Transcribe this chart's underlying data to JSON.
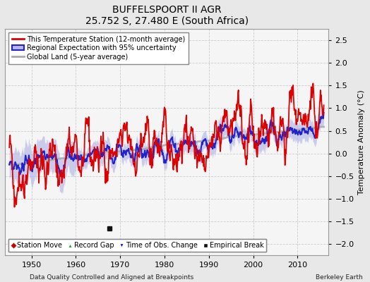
{
  "title": "BUFFELSPOORT II AGR",
  "subtitle": "25.752 S, 27.480 E (South Africa)",
  "ylabel": "Temperature Anomaly (°C)",
  "xlabel_left": "Data Quality Controlled and Aligned at Breakpoints",
  "xlabel_right": "Berkeley Earth",
  "ylim": [
    -2.25,
    2.75
  ],
  "xlim": [
    1944,
    2017
  ],
  "yticks": [
    -2,
    -1.5,
    -1,
    -0.5,
    0,
    0.5,
    1,
    1.5,
    2,
    2.5
  ],
  "xticks": [
    1950,
    1960,
    1970,
    1980,
    1990,
    2000,
    2010
  ],
  "start_year": 1945,
  "empirical_break_year": 1967.5,
  "background_color": "#e8e8e8",
  "plot_bg_color": "#f5f5f5",
  "station_color": "#dd0000",
  "regional_color": "#2222cc",
  "regional_fill_color": "#b8b8e8",
  "global_color": "#aaaaaa",
  "legend_labels": [
    "This Temperature Station (12-month average)",
    "Regional Expectation with 95% uncertainty",
    "Global Land (5-year average)"
  ],
  "marker_labels": [
    "Station Move",
    "Record Gap",
    "Time of Obs. Change",
    "Empirical Break"
  ],
  "legend_marker_colors": [
    "#cc0000",
    "#00aa00",
    "#0000cc",
    "#111111"
  ],
  "station_lw": 1.3,
  "regional_lw": 1.5,
  "global_lw": 2.0
}
